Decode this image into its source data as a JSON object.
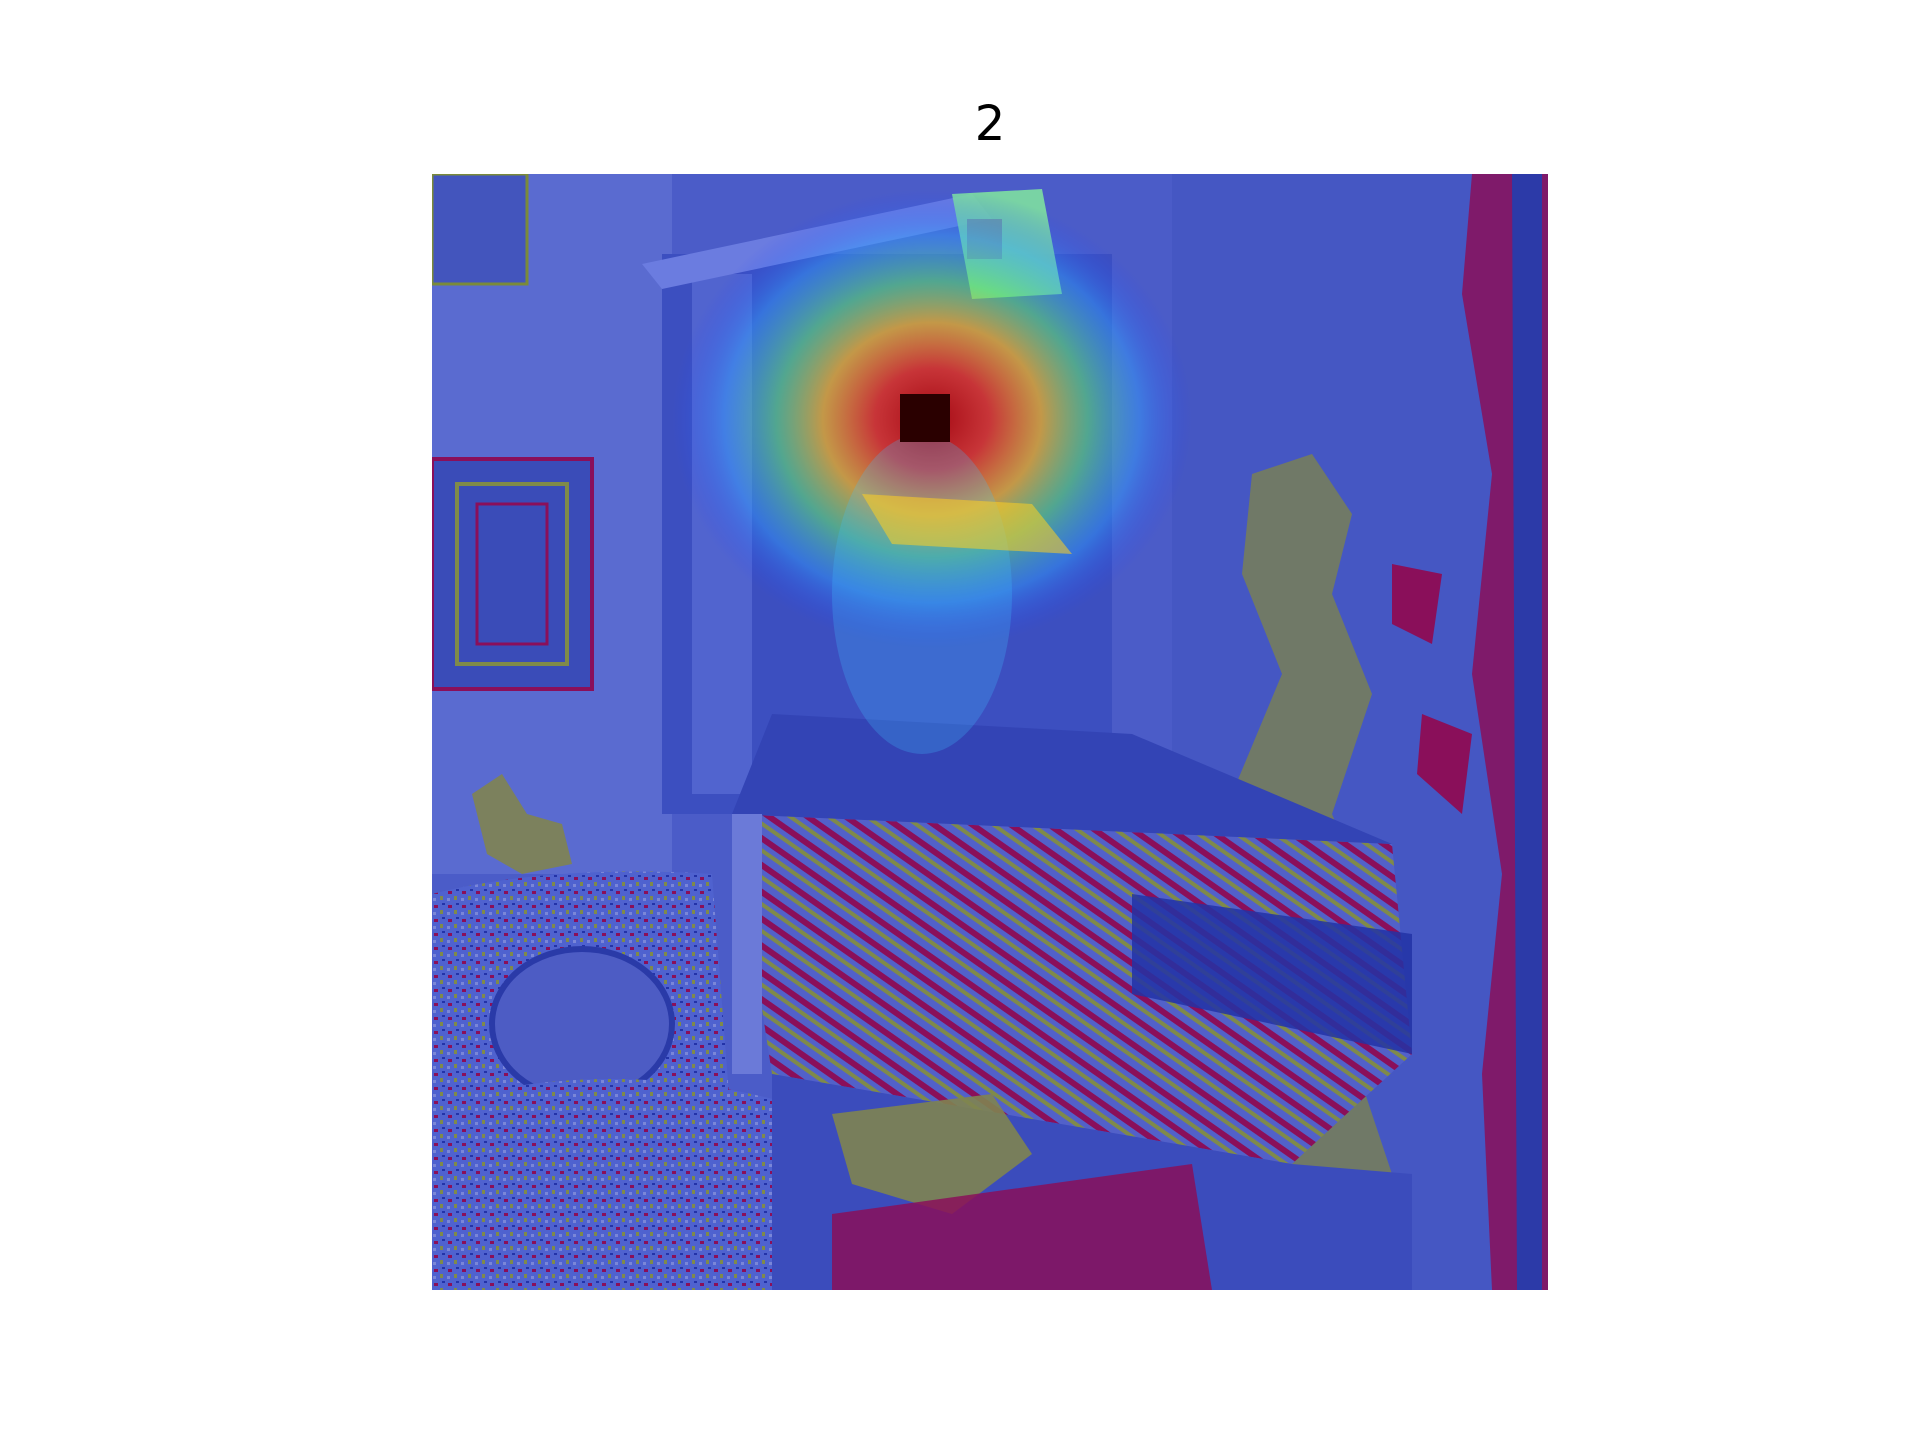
{
  "figure": {
    "title": "2"
  },
  "overlay": {
    "colormap": "jet",
    "marker_color": "#2a0000"
  }
}
